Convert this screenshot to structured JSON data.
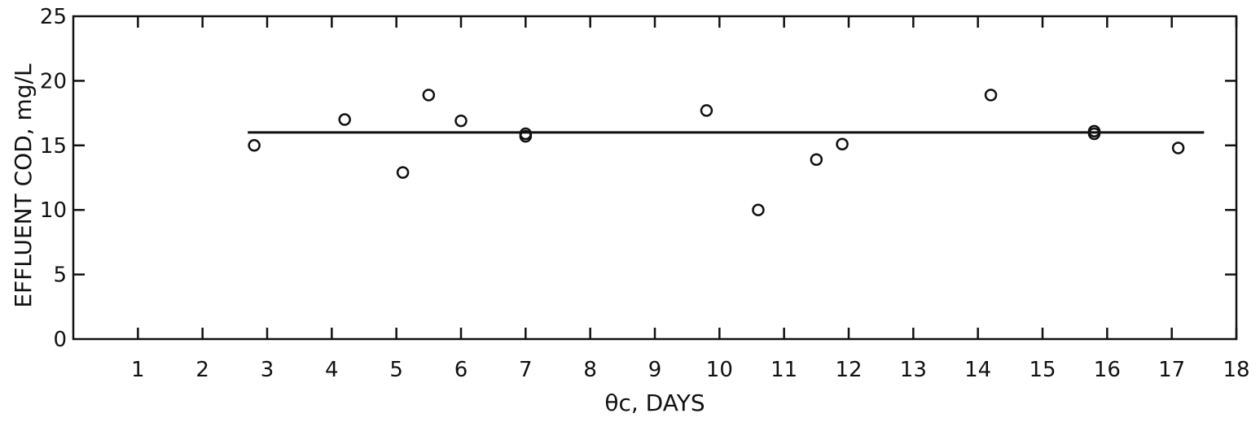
{
  "chart_data": {
    "type": "scatter",
    "title": "",
    "xlabel": "θc, DAYS",
    "ylabel": "EFFLUENT COD, mg/L",
    "xlim": [
      0,
      18
    ],
    "ylim": [
      0,
      25
    ],
    "x_ticks": [
      1,
      2,
      3,
      4,
      5,
      6,
      7,
      8,
      9,
      10,
      11,
      12,
      13,
      14,
      15,
      16,
      17,
      18
    ],
    "y_ticks": [
      0,
      5,
      10,
      15,
      20,
      25
    ],
    "grid": false,
    "legend": "none",
    "points": [
      {
        "x": 2.8,
        "y": 15.0
      },
      {
        "x": 4.2,
        "y": 17.0
      },
      {
        "x": 5.1,
        "y": 12.9
      },
      {
        "x": 5.5,
        "y": 18.9
      },
      {
        "x": 6.0,
        "y": 16.9
      },
      {
        "x": 7.0,
        "y": 15.7
      },
      {
        "x": 7.0,
        "y": 15.9
      },
      {
        "x": 9.8,
        "y": 17.7
      },
      {
        "x": 10.6,
        "y": 10.0
      },
      {
        "x": 11.5,
        "y": 13.9
      },
      {
        "x": 11.9,
        "y": 15.1
      },
      {
        "x": 14.2,
        "y": 18.9
      },
      {
        "x": 15.8,
        "y": 15.9
      },
      {
        "x": 15.8,
        "y": 16.1
      },
      {
        "x": 17.1,
        "y": 14.8
      }
    ],
    "mean_line": {
      "y": 16.0,
      "x_start": 2.7,
      "x_end": 17.5
    },
    "colors": {
      "ink": "#111111",
      "background": "#ffffff"
    }
  }
}
